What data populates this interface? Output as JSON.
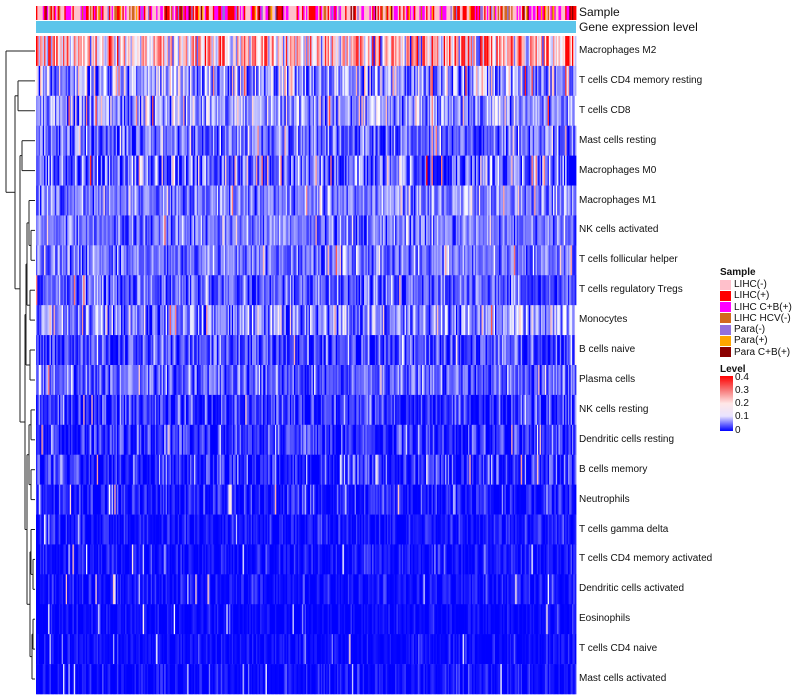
{
  "chart_data": {
    "type": "heatmap",
    "title": "",
    "n_samples": 400,
    "rows": [
      {
        "label": "Macrophages M2",
        "mean": 0.24,
        "sd": 0.09
      },
      {
        "label": "T cells CD4 memory resting",
        "mean": 0.12,
        "sd": 0.08
      },
      {
        "label": "T cells CD8",
        "mean": 0.12,
        "sd": 0.06
      },
      {
        "label": "Mast cells resting",
        "mean": 0.08,
        "sd": 0.06
      },
      {
        "label": "Macrophages M0",
        "mean": 0.07,
        "sd": 0.09
      },
      {
        "label": "Macrophages M1",
        "mean": 0.1,
        "sd": 0.05
      },
      {
        "label": "NK cells activated",
        "mean": 0.09,
        "sd": 0.05
      },
      {
        "label": "T cells follicular helper",
        "mean": 0.09,
        "sd": 0.05
      },
      {
        "label": "T cells regulatory  Tregs",
        "mean": 0.07,
        "sd": 0.05
      },
      {
        "label": "Monocytes",
        "mean": 0.1,
        "sd": 0.07
      },
      {
        "label": "B cells naive",
        "mean": 0.05,
        "sd": 0.05
      },
      {
        "label": "Plasma cells",
        "mean": 0.07,
        "sd": 0.05
      },
      {
        "label": "NK cells resting",
        "mean": 0.03,
        "sd": 0.05
      },
      {
        "label": "Dendritic cells resting",
        "mean": 0.03,
        "sd": 0.05
      },
      {
        "label": "B cells memory",
        "mean": 0.03,
        "sd": 0.05
      },
      {
        "label": "Neutrophils",
        "mean": 0.02,
        "sd": 0.04
      },
      {
        "label": "T cells gamma delta",
        "mean": 0.01,
        "sd": 0.03
      },
      {
        "label": "T cells CD4 memory activated",
        "mean": 0.01,
        "sd": 0.025
      },
      {
        "label": "Dendritic cells activated",
        "mean": 0.01,
        "sd": 0.025
      },
      {
        "label": "Eosinophils",
        "mean": 0.005,
        "sd": 0.02
      },
      {
        "label": "T cells CD4 naive",
        "mean": 0.005,
        "sd": 0.02
      },
      {
        "label": "Mast cells activated",
        "mean": 0.005,
        "sd": 0.025
      }
    ],
    "column_annotations": [
      {
        "name": "Sample",
        "type": "categorical"
      },
      {
        "name": "Gene expression level",
        "type": "continuous"
      }
    ],
    "value_range": [
      0,
      0.4
    ],
    "row_dendrogram": true
  },
  "legend": {
    "sample": {
      "title": "Sample",
      "items": [
        {
          "label": "LIHC(-)",
          "color": "#ffc0cb"
        },
        {
          "label": "LIHC(+)",
          "color": "#ff0000"
        },
        {
          "label": "LIHC C+B(+)",
          "color": "#ff00ff"
        },
        {
          "label": "LIHC HCV(-)",
          "color": "#d2691e"
        },
        {
          "label": "Para(-)",
          "color": "#9370db"
        },
        {
          "label": "Para(+)",
          "color": "#ffa500"
        },
        {
          "label": "Para C+B(+)",
          "color": "#8b0000"
        }
      ]
    },
    "level": {
      "title": "Level",
      "ticks": [
        "0.4",
        "0.3",
        "0.2",
        "0.1",
        "0"
      ]
    }
  },
  "colors": {
    "low": "#0000ff",
    "mid": "#ffffff",
    "high": "#ff0000",
    "expression_bar": "#5bc5ea"
  }
}
